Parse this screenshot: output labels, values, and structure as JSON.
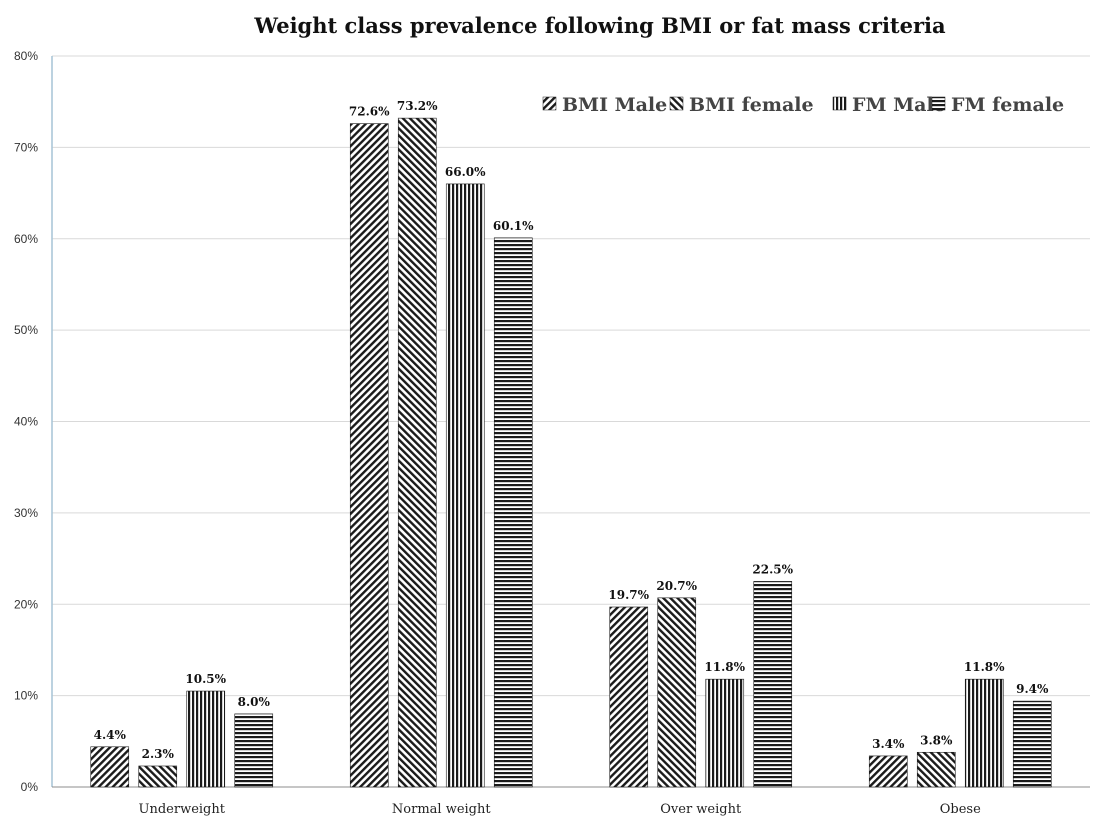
{
  "chart_data": {
    "type": "bar",
    "title": "Weight class prevalence following BMI or fat mass criteria",
    "xlabel": "",
    "ylabel": "",
    "ylim": [
      0,
      80
    ],
    "y_ticks": [
      "0%",
      "10%",
      "20%",
      "30%",
      "40%",
      "50%",
      "60%",
      "70%",
      "80%"
    ],
    "grid": true,
    "legend_position": "top-right",
    "categories": [
      "Underweight",
      "Normal weight",
      "Over weight",
      "Obese"
    ],
    "series": [
      {
        "name": "BMI Male",
        "pattern": "diagonal-up",
        "values": [
          4.4,
          72.6,
          19.7,
          3.4
        ],
        "labels": [
          "4.4%",
          "72.6%",
          "19.7%",
          "3.4%"
        ]
      },
      {
        "name": "BMI female",
        "pattern": "diagonal-down",
        "values": [
          2.3,
          73.2,
          20.7,
          3.8
        ],
        "labels": [
          "2.3%",
          "73.2%",
          "20.7%",
          "3.8%"
        ]
      },
      {
        "name": "FM Male",
        "pattern": "vertical",
        "values": [
          10.5,
          66.0,
          11.8,
          11.8
        ],
        "labels": [
          "10.5%",
          "66.0%",
          "11.8%",
          "11.8%"
        ]
      },
      {
        "name": "FM female",
        "pattern": "horizontal",
        "values": [
          8.0,
          60.1,
          22.5,
          9.4
        ],
        "labels": [
          "8.0%",
          "60.1%",
          "22.5%",
          "9.4%"
        ]
      }
    ],
    "colors": {
      "ink": "#1a1a1a",
      "grid": "#d9d9d9",
      "axis": "#a6c4d6"
    }
  }
}
